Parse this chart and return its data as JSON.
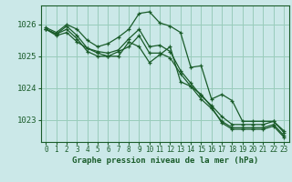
{
  "bg_color": "#cbe8e8",
  "grid_color": "#99ccbb",
  "line_color": "#1a5c2a",
  "xlabel": "Graphe pression niveau de la mer (hPa)",
  "xlim": [
    -0.5,
    23.5
  ],
  "ylim": [
    1022.3,
    1026.6
  ],
  "yticks": [
    1023,
    1024,
    1025,
    1026
  ],
  "xticks": [
    0,
    1,
    2,
    3,
    4,
    5,
    6,
    7,
    8,
    9,
    10,
    11,
    12,
    13,
    14,
    15,
    16,
    17,
    18,
    19,
    20,
    21,
    22,
    23
  ],
  "series": [
    [
      1025.9,
      1025.75,
      1026.0,
      1025.85,
      1025.5,
      1025.3,
      1025.4,
      1025.6,
      1025.85,
      1026.35,
      1026.4,
      1026.05,
      1025.95,
      1025.75,
      1024.65,
      1024.7,
      1023.65,
      1023.8,
      1023.6,
      1022.95,
      1022.95,
      1022.95,
      1022.95,
      1022.65
    ],
    [
      1025.85,
      1025.7,
      1025.95,
      1025.65,
      1025.25,
      1025.15,
      1025.1,
      1025.2,
      1025.55,
      1025.85,
      1025.3,
      1025.35,
      1025.15,
      1024.55,
      1024.15,
      1023.75,
      1023.45,
      1023.1,
      1022.85,
      1022.85,
      1022.85,
      1022.85,
      1022.95,
      1022.6
    ],
    [
      1025.85,
      1025.7,
      1025.85,
      1025.55,
      1025.15,
      1025.0,
      1025.0,
      1025.15,
      1025.3,
      1025.65,
      1025.1,
      1025.1,
      1024.95,
      1024.45,
      1024.05,
      1023.65,
      1023.35,
      1022.95,
      1022.75,
      1022.75,
      1022.75,
      1022.75,
      1022.85,
      1022.5
    ],
    [
      1025.85,
      1025.65,
      1025.75,
      1025.45,
      1025.25,
      1025.1,
      1025.0,
      1025.0,
      1025.45,
      1025.3,
      1024.8,
      1025.05,
      1025.3,
      1024.2,
      1024.05,
      1023.8,
      1023.4,
      1022.9,
      1022.7,
      1022.7,
      1022.7,
      1022.7,
      1022.8,
      1022.45
    ]
  ]
}
